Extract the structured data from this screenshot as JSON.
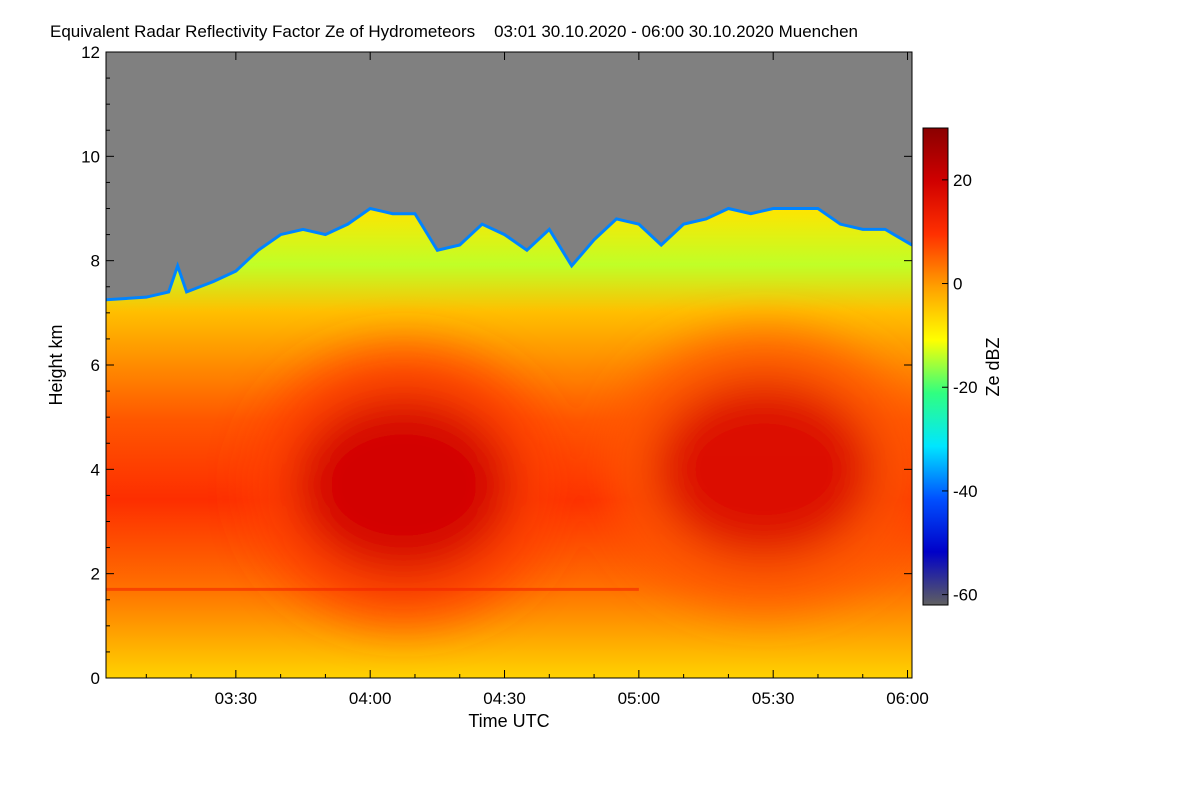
{
  "chart_data": {
    "type": "heatmap",
    "title": "Equivalent Radar Reflectivity Factor Ze of Hydrometeors",
    "subtitle": "03:01 30.10.2020 - 06:00 30.10.2020 Muenchen",
    "xlabel": "Time UTC",
    "ylabel": "Height km",
    "colorbar_label": "Ze dBZ",
    "x_range_minutes": [
      181,
      361
    ],
    "x_ticks": [
      {
        "label": "03:30",
        "minutes": 210
      },
      {
        "label": "04:00",
        "minutes": 240
      },
      {
        "label": "04:30",
        "minutes": 270
      },
      {
        "label": "05:00",
        "minutes": 300
      },
      {
        "label": "05:30",
        "minutes": 330
      },
      {
        "label": "06:00",
        "minutes": 360
      }
    ],
    "ylim": [
      0,
      12
    ],
    "y_ticks": [
      0,
      2,
      4,
      6,
      8,
      10,
      12
    ],
    "colorbar_range": [
      -62,
      30
    ],
    "colorbar_ticks": [
      20,
      0,
      -20,
      -40,
      -60
    ],
    "colormap": [
      "#606060",
      "#0000c8",
      "#0050ff",
      "#00e6ff",
      "#30ff80",
      "#ffff00",
      "#ffa000",
      "#ff3000",
      "#d00000",
      "#8a0000"
    ],
    "no_data_color": "#808080",
    "cloud_top_km": [
      [
        181,
        7.25
      ],
      [
        190,
        7.3
      ],
      [
        195,
        7.4
      ],
      [
        197,
        7.9
      ],
      [
        199,
        7.4
      ],
      [
        205,
        7.6
      ],
      [
        210,
        7.8
      ],
      [
        215,
        8.2
      ],
      [
        220,
        8.5
      ],
      [
        225,
        8.6
      ],
      [
        230,
        8.5
      ],
      [
        235,
        8.7
      ],
      [
        240,
        9.0
      ],
      [
        245,
        8.9
      ],
      [
        250,
        8.9
      ],
      [
        255,
        8.2
      ],
      [
        260,
        8.3
      ],
      [
        265,
        8.7
      ],
      [
        270,
        8.5
      ],
      [
        275,
        8.2
      ],
      [
        280,
        8.6
      ],
      [
        285,
        7.9
      ],
      [
        290,
        8.4
      ],
      [
        295,
        8.8
      ],
      [
        300,
        8.7
      ],
      [
        305,
        8.3
      ],
      [
        310,
        8.7
      ],
      [
        315,
        8.8
      ],
      [
        320,
        9.0
      ],
      [
        325,
        8.9
      ],
      [
        330,
        9.0
      ],
      [
        335,
        9.0
      ],
      [
        340,
        9.0
      ],
      [
        345,
        8.7
      ],
      [
        350,
        8.6
      ],
      [
        355,
        8.6
      ],
      [
        361,
        8.3
      ]
    ],
    "cores": [
      {
        "t_start": 215,
        "t_end": 280,
        "height_center_km": 3.7,
        "ze_peak_dbz": 20
      },
      {
        "t_start": 295,
        "t_end": 361,
        "height_center_km": 4.0,
        "ze_peak_dbz": 18
      }
    ],
    "melting_layer_km": 1.7
  }
}
